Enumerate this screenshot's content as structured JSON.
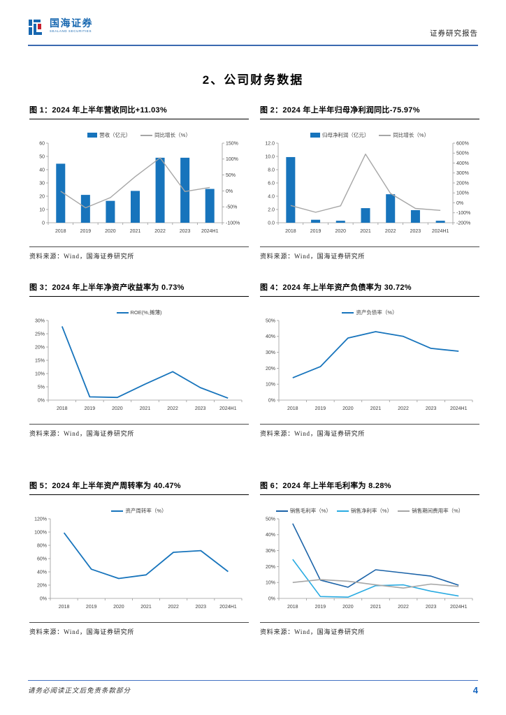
{
  "header": {
    "logo_title": "国海证券",
    "logo_subtitle": "SEALAND SECURITIES",
    "report_type": "证券研究报告"
  },
  "section_title": "2、公司财务数据",
  "source_label": "资料来源：Wind，国海证券研究所",
  "footer": {
    "disclaimer": "请务必阅读正文后免责条款部分",
    "page_number": "4"
  },
  "colors": {
    "brand_blue": "#1767B0",
    "bar_blue": "#1774BC",
    "line_gray": "#A6A6A6",
    "dark_blue": "#1B63A8",
    "cyan_blue": "#29ABE2",
    "header_rule": "#3A69B0",
    "footer_rule": "#4472C4",
    "logo_red": "#C8202F"
  },
  "chart_data": [
    {
      "type": "combo",
      "title": "图 1：2024 年上半年营收同比+11.03%",
      "categories": [
        "2018",
        "2019",
        "2020",
        "2021",
        "2022",
        "2023",
        "2024H1"
      ],
      "bar_series": {
        "name": "营收（亿元）",
        "color": "#1774BC",
        "values": [
          44.5,
          21,
          16.5,
          24,
          49,
          49,
          25.5
        ]
      },
      "line_series": [
        {
          "name": "同比增长（%）",
          "color": "#A6A6A6",
          "axis": "right",
          "lw": 1.4,
          "values": [
            -1,
            -53,
            -21,
            45,
            104,
            -2,
            11.03
          ]
        }
      ],
      "left_axis": {
        "min": 0,
        "max": 60,
        "step": 10,
        "fmt": "int"
      },
      "right_axis": {
        "min": -100,
        "max": 150,
        "step": 50,
        "fmt": "pct"
      },
      "legend_position": "top-center"
    },
    {
      "type": "combo",
      "title": "图 2：2024 年上半年归母净利润同比-75.97%",
      "categories": [
        "2018",
        "2019",
        "2020",
        "2021",
        "2022",
        "2023",
        "2024H1"
      ],
      "bar_series": {
        "name": "归母净利润（亿元）",
        "color": "#1774BC",
        "values": [
          9.9,
          0.45,
          0.3,
          2.2,
          4.3,
          1.9,
          0.3
        ]
      },
      "line_series": [
        {
          "name": "同比增长（%）",
          "color": "#A6A6A6",
          "axis": "right",
          "lw": 1.4,
          "values": [
            -27,
            -95,
            -30,
            490,
            95,
            -56,
            -75.97
          ]
        }
      ],
      "left_axis": {
        "min": 0,
        "max": 12,
        "step": 2,
        "fmt": "1dp"
      },
      "right_axis": {
        "min": -200,
        "max": 600,
        "step": 100,
        "fmt": "pct"
      },
      "legend_position": "top-center"
    },
    {
      "type": "line",
      "title": "图 3：2024 年上半年净资产收益率为 0.73%",
      "categories": [
        "2018",
        "2019",
        "2020",
        "2021",
        "2022",
        "2023",
        "2024H1"
      ],
      "series": [
        {
          "name": "ROE(%,摊薄)",
          "color": "#1774BC",
          "lw": 1.8,
          "values": [
            27.8,
            1.2,
            1.0,
            6.0,
            10.7,
            4.7,
            0.73
          ]
        }
      ],
      "left_axis": {
        "min": 0,
        "max": 30,
        "step": 5,
        "fmt": "pct"
      },
      "legend_position": "top-center"
    },
    {
      "type": "line",
      "title": "图 4：2024 年上半年资产负债率为 30.72%",
      "categories": [
        "2018",
        "2019",
        "2020",
        "2021",
        "2022",
        "2023",
        "2024H1"
      ],
      "series": [
        {
          "name": "资产负债率（%）",
          "color": "#1774BC",
          "lw": 1.8,
          "values": [
            14,
            21,
            39,
            43,
            40,
            32.5,
            30.72
          ]
        }
      ],
      "left_axis": {
        "min": 0,
        "max": 50,
        "step": 10,
        "fmt": "pct"
      },
      "legend_position": "top-center"
    },
    {
      "type": "line",
      "title": "图 5：2024 年上半年资产周转率为 40.47%",
      "categories": [
        "2018",
        "2019",
        "2020",
        "2021",
        "2022",
        "2023",
        "2024H1"
      ],
      "series": [
        {
          "name": "资产周转率（%）",
          "color": "#1774BC",
          "lw": 1.8,
          "values": [
            99,
            44,
            30,
            35.5,
            69.5,
            72,
            40.47
          ]
        }
      ],
      "left_axis": {
        "min": 0,
        "max": 120,
        "step": 20,
        "fmt": "pct"
      },
      "legend_position": "top-center"
    },
    {
      "type": "line",
      "title": "图 6：2024 年上半年毛利率为 8.28%",
      "categories": [
        "2018",
        "2019",
        "2020",
        "2021",
        "2022",
        "2023",
        "2024H1"
      ],
      "series": [
        {
          "name": "销售毛利率（%）",
          "color": "#1B63A8",
          "lw": 1.6,
          "values": [
            47,
            11.5,
            7,
            18,
            16,
            14,
            8.28
          ]
        },
        {
          "name": "销售净利率（%）",
          "color": "#29ABE2",
          "lw": 1.6,
          "values": [
            24.5,
            1.2,
            0.8,
            8,
            8.5,
            4.5,
            1.5
          ]
        },
        {
          "name": "销售期间费用率（%）",
          "color": "#A6A6A6",
          "lw": 1.6,
          "values": [
            10,
            11.8,
            10.8,
            8.5,
            6.5,
            9,
            7.5
          ]
        }
      ],
      "left_axis": {
        "min": 0,
        "max": 50,
        "step": 10,
        "fmt": "pct"
      },
      "legend_position": "top-center"
    }
  ]
}
